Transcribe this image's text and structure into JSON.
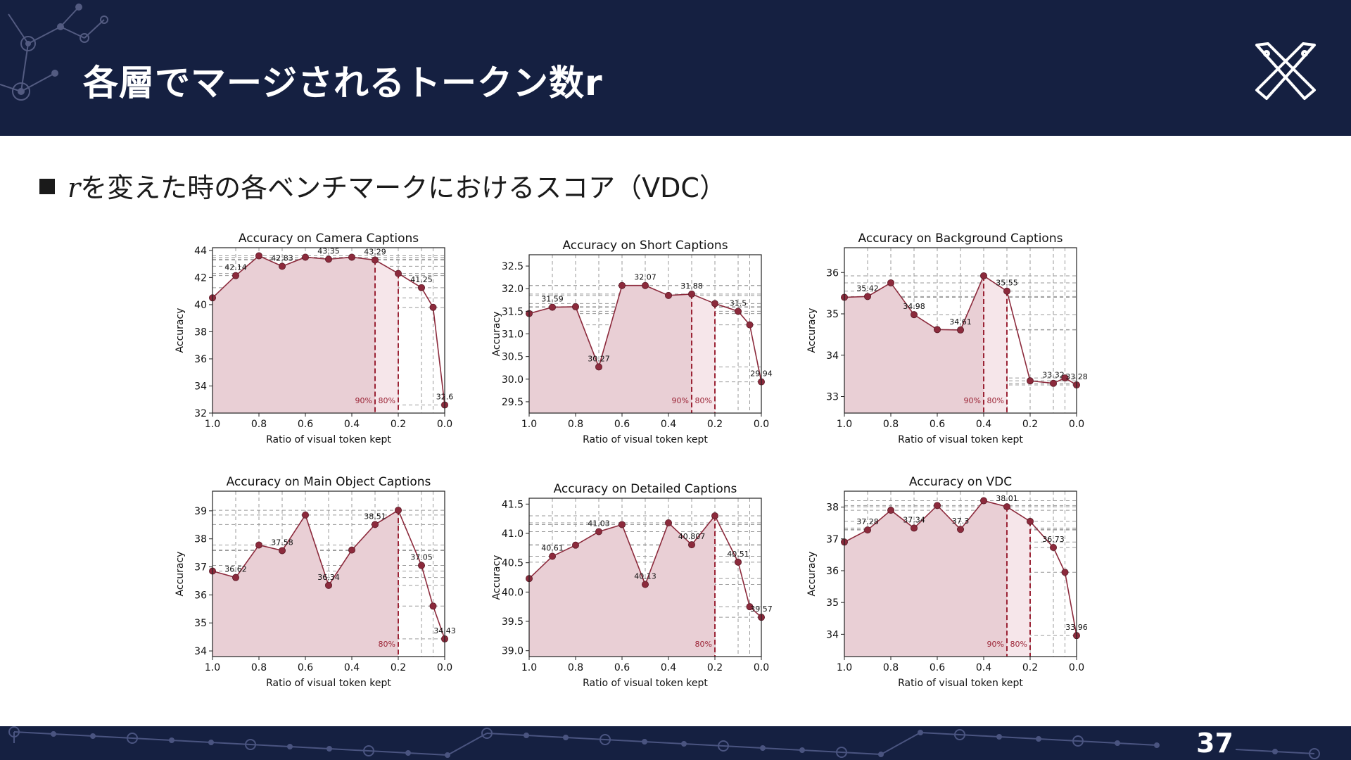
{
  "slide": {
    "title": "各層でマージされるトークン数r",
    "bullet_var": "r",
    "bullet_text": "を変えた時の各ベンチマークにおけるスコア（VDC）",
    "page_number": "37"
  },
  "colors": {
    "header_bg": "#152041",
    "accent": "#9b2335",
    "marker": "#8c2a3c",
    "fill": "#e9cfd5"
  },
  "chart_data": [
    {
      "type": "line",
      "title": "Accuracy on Camera Captions",
      "xlabel": "Ratio of visual token kept",
      "ylabel": "Accuracy",
      "x": [
        1.0,
        0.9,
        0.8,
        0.7,
        0.6,
        0.5,
        0.4,
        0.3,
        0.2,
        0.1,
        0.05,
        0.0
      ],
      "y": [
        40.5,
        42.14,
        43.6,
        42.83,
        43.5,
        43.35,
        43.5,
        43.29,
        42.3,
        41.25,
        39.8,
        32.6
      ],
      "labels": [
        "",
        "42.14",
        "",
        "42.83",
        "",
        "43.35",
        "",
        "43.29",
        "",
        "41.25",
        "",
        "32.6"
      ],
      "xlim": [
        1.0,
        0.0
      ],
      "ylim": [
        32,
        44.2
      ],
      "yticks": [
        32,
        34,
        36,
        38,
        40,
        42,
        44
      ],
      "xticks": [
        1.0,
        0.8,
        0.6,
        0.4,
        0.2,
        0.0
      ],
      "xtick_labels": [
        "1.0",
        "0.8",
        "0.6",
        "0.4",
        "0.2",
        "0.0"
      ],
      "vlines": [
        {
          "x": 0.3,
          "label": "90%"
        },
        {
          "x": 0.2,
          "label": "80%"
        }
      ],
      "grid": true
    },
    {
      "type": "line",
      "title": "Accuracy on Short Captions",
      "xlabel": "Ratio of visual token kept",
      "ylabel": "Accuracy",
      "x": [
        1.0,
        0.9,
        0.8,
        0.7,
        0.6,
        0.5,
        0.4,
        0.3,
        0.2,
        0.1,
        0.05,
        0.0
      ],
      "y": [
        31.45,
        31.59,
        31.6,
        30.27,
        32.07,
        32.07,
        31.85,
        31.88,
        31.67,
        31.5,
        31.2,
        29.94
      ],
      "labels": [
        "",
        "31.59",
        "",
        "30.27",
        "",
        "32.07",
        "",
        "31.88",
        "",
        "31.5",
        "",
        "29.94"
      ],
      "xlim": [
        1.0,
        0.0
      ],
      "ylim": [
        29.25,
        32.75
      ],
      "yticks": [
        29.5,
        30.0,
        30.5,
        31.0,
        31.5,
        32.0,
        32.5
      ],
      "xticks": [
        1.0,
        0.8,
        0.6,
        0.4,
        0.2,
        0.0
      ],
      "xtick_labels": [
        "1.0",
        "0.8",
        "0.6",
        "0.4",
        "0.2",
        "0.0"
      ],
      "vlines": [
        {
          "x": 0.3,
          "label": "90%"
        },
        {
          "x": 0.2,
          "label": "80%"
        }
      ],
      "grid": true
    },
    {
      "type": "line",
      "title": "Accuracy on Background Captions",
      "xlabel": "Ratio of visual token kept",
      "ylabel": "Accuracy",
      "x": [
        1.0,
        0.9,
        0.8,
        0.7,
        0.6,
        0.5,
        0.4,
        0.3,
        0.2,
        0.1,
        0.05,
        0.0
      ],
      "y": [
        35.4,
        35.42,
        35.75,
        34.98,
        34.62,
        34.61,
        35.92,
        35.55,
        33.38,
        33.32,
        33.45,
        33.28
      ],
      "labels": [
        "",
        "35.42",
        "",
        "34.98",
        "",
        "34.61",
        "",
        "35.55",
        "",
        "33.32",
        "",
        "33.28"
      ],
      "xlim": [
        1.0,
        0.0
      ],
      "ylim": [
        32.6,
        36.6
      ],
      "yticks": [
        33,
        34,
        35,
        36
      ],
      "xticks": [
        1.0,
        0.8,
        0.6,
        0.4,
        0.2,
        0.0
      ],
      "xtick_labels": [
        "1.0",
        "0.8",
        "0.6",
        "0.4",
        "0.2",
        "0.0"
      ],
      "vlines": [
        {
          "x": 0.4,
          "label": "90%"
        },
        {
          "x": 0.3,
          "label": "80%"
        }
      ],
      "grid": true
    },
    {
      "type": "line",
      "title": "Accuracy on Main Object Captions",
      "xlabel": "Ratio of visual token kept",
      "ylabel": "Accuracy",
      "x": [
        1.0,
        0.9,
        0.8,
        0.7,
        0.6,
        0.5,
        0.4,
        0.3,
        0.2,
        0.1,
        0.05,
        0.0
      ],
      "y": [
        36.85,
        36.62,
        37.78,
        37.58,
        38.85,
        36.34,
        37.6,
        38.51,
        39.02,
        37.05,
        35.6,
        34.43
      ],
      "labels": [
        "",
        "36.62",
        "",
        "37.58",
        "",
        "36.34",
        "",
        "38.51",
        "",
        "37.05",
        "",
        "34.43"
      ],
      "xlim": [
        1.0,
        0.0
      ],
      "ylim": [
        33.8,
        39.7
      ],
      "yticks": [
        34,
        35,
        36,
        37,
        38,
        39
      ],
      "xticks": [
        1.0,
        0.8,
        0.6,
        0.4,
        0.2,
        0.0
      ],
      "xtick_labels": [
        "1.0",
        "0.8",
        "0.6",
        "0.4",
        "0.2",
        "0.0"
      ],
      "vlines": [
        {
          "x": 0.2,
          "label": "80%"
        }
      ],
      "grid": true
    },
    {
      "type": "line",
      "title": "Accuracy on Detailed Captions",
      "xlabel": "Ratio of visual token kept",
      "ylabel": "Accuracy",
      "x": [
        1.0,
        0.9,
        0.8,
        0.7,
        0.6,
        0.5,
        0.4,
        0.3,
        0.2,
        0.1,
        0.05,
        0.0
      ],
      "y": [
        40.23,
        40.61,
        40.8,
        41.03,
        41.15,
        40.13,
        41.18,
        40.807,
        41.3,
        40.51,
        39.75,
        39.57
      ],
      "labels": [
        "",
        "40.61",
        "",
        "41.03",
        "",
        "40.13",
        "",
        "40.807",
        "",
        "40.51",
        "",
        "39.57"
      ],
      "xlim": [
        1.0,
        0.0
      ],
      "ylim": [
        38.9,
        41.6
      ],
      "yticks": [
        39.0,
        39.5,
        40.0,
        40.5,
        41.0,
        41.5
      ],
      "xticks": [
        1.0,
        0.8,
        0.6,
        0.4,
        0.2,
        0.0
      ],
      "xtick_labels": [
        "1.0",
        "0.8",
        "0.6",
        "0.4",
        "0.2",
        "0.0"
      ],
      "vlines": [
        {
          "x": 0.2,
          "label": "80%"
        }
      ],
      "grid": true
    },
    {
      "type": "line",
      "title": "Accuracy on VDC",
      "xlabel": "Ratio of visual token kept",
      "ylabel": "Accuracy",
      "x": [
        1.0,
        0.9,
        0.8,
        0.7,
        0.6,
        0.5,
        0.4,
        0.3,
        0.2,
        0.1,
        0.05,
        0.0
      ],
      "y": [
        36.9,
        37.28,
        37.9,
        37.34,
        38.05,
        37.3,
        38.2,
        38.01,
        37.55,
        36.73,
        35.95,
        33.96
      ],
      "labels": [
        "",
        "37.28",
        "",
        "37.34",
        "",
        "37.3",
        "",
        "38.01",
        "",
        "36.73",
        "",
        "33.96"
      ],
      "xlim": [
        1.0,
        0.0
      ],
      "ylim": [
        33.3,
        38.5
      ],
      "yticks": [
        34,
        35,
        36,
        37,
        38
      ],
      "xticks": [
        1.0,
        0.8,
        0.6,
        0.4,
        0.2,
        0.0
      ],
      "xtick_labels": [
        "1.0",
        "0.8",
        "0.6",
        "0.4",
        "0.2",
        "0.0"
      ],
      "vlines": [
        {
          "x": 0.3,
          "label": "90%"
        },
        {
          "x": 0.2,
          "label": "80%"
        }
      ],
      "grid": true
    }
  ]
}
